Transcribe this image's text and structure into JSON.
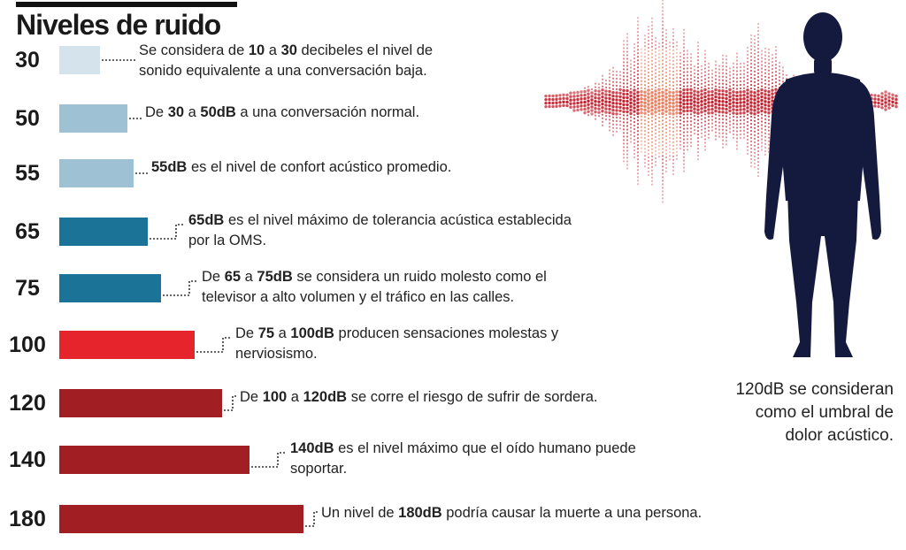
{
  "title": "Niveles de ruido",
  "levels": [
    {
      "db": "30",
      "parts": [
        {
          "t": "Se considera de "
        },
        {
          "t": "10",
          "b": true
        },
        {
          "t": " a "
        },
        {
          "t": "30",
          "b": true
        },
        {
          "t": " decibeles el nivel de"
        },
        {
          "br": true
        },
        {
          "t": "sonido equivalente a una conversación baja."
        }
      ]
    },
    {
      "db": "50",
      "parts": [
        {
          "t": "De "
        },
        {
          "t": "30",
          "b": true
        },
        {
          "t": " a "
        },
        {
          "t": "50dB",
          "b": true
        },
        {
          "t": " a una conversación normal."
        }
      ]
    },
    {
      "db": "55",
      "parts": [
        {
          "t": "55dB",
          "b": true
        },
        {
          "t": " es el nivel de confort acústico promedio."
        }
      ]
    },
    {
      "db": "65",
      "parts": [
        {
          "t": "65dB",
          "b": true
        },
        {
          "t": " es el nivel máximo de tolerancia acústica establecida"
        },
        {
          "br": true
        },
        {
          "t": "por la OMS."
        }
      ]
    },
    {
      "db": "75",
      "parts": [
        {
          "t": "De "
        },
        {
          "t": "65",
          "b": true
        },
        {
          "t": " a "
        },
        {
          "t": "75dB",
          "b": true
        },
        {
          "t": " se considera un ruido molesto como el"
        },
        {
          "br": true
        },
        {
          "t": "televisor a alto volumen y el tráfico en las calles."
        }
      ]
    },
    {
      "db": "100",
      "parts": [
        {
          "t": "De "
        },
        {
          "t": "75",
          "b": true
        },
        {
          "t": " a "
        },
        {
          "t": "100dB",
          "b": true
        },
        {
          "t": " producen sensaciones molestas y"
        },
        {
          "br": true
        },
        {
          "t": "nerviosismo."
        }
      ]
    },
    {
      "db": "120",
      "parts": [
        {
          "t": "De "
        },
        {
          "t": "100",
          "b": true
        },
        {
          "t": " a "
        },
        {
          "t": "120dB",
          "b": true
        },
        {
          "t": " se corre el riesgo de sufrir de sordera."
        }
      ]
    },
    {
      "db": "140",
      "parts": [
        {
          "t": "140dB",
          "b": true
        },
        {
          "t": " es el nivel máximo que el oído humano puede"
        },
        {
          "br": true
        },
        {
          "t": "soportar."
        }
      ]
    },
    {
      "db": "180",
      "parts": [
        {
          "t": "Un nivel de "
        },
        {
          "t": "180dB",
          "b": true
        },
        {
          "t": " podría causar la muerte a una persona."
        }
      ]
    }
  ],
  "aside_text": "120dB se consideran como el umbral de dolor acústico.",
  "colors": {
    "light": "#d5e3ec",
    "pale_blue": "#9ec1d3",
    "teal": "#1b7397",
    "red": "#e5242b",
    "dark_red": "#a11e22",
    "figure": "#141a3d",
    "wave": "#c21e2b"
  },
  "chart_data": {
    "type": "bar",
    "orientation": "horizontal",
    "title": "Niveles de ruido",
    "categories": [
      "30",
      "50",
      "55",
      "65",
      "75",
      "100",
      "120",
      "140",
      "180"
    ],
    "values": [
      30,
      50,
      55,
      65,
      75,
      100,
      120,
      140,
      180
    ],
    "bar_colors": [
      "#d5e3ec",
      "#9ec1d3",
      "#9ec1d3",
      "#1b7397",
      "#1b7397",
      "#e5242b",
      "#a11e22",
      "#a11e22",
      "#a11e22"
    ],
    "xlabel": "",
    "ylabel": "",
    "grid": false,
    "legend": "none"
  }
}
